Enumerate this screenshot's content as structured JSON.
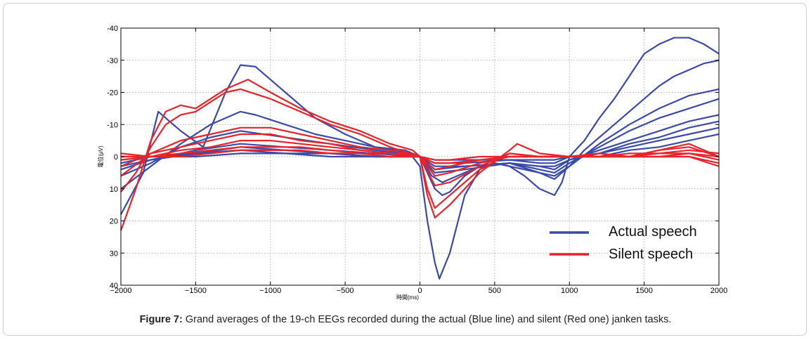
{
  "caption": {
    "label": "Figure 7:",
    "text": "Grand averages of the 19-ch EEGs recorded during the actual (Blue line) and silent (Red one) janken tasks."
  },
  "chart_data": {
    "type": "line",
    "xlim": [
      -2000,
      2000
    ],
    "ylim": [
      -40,
      40
    ],
    "y_inverted": true,
    "grid": true,
    "xticks": [
      -2000,
      -1500,
      -1000,
      -500,
      0,
      500,
      1000,
      1500,
      2000
    ],
    "xtick_labels": [
      "−2000",
      "−1500",
      "−1000",
      "−500",
      "0",
      "500",
      "1000",
      "1500",
      "2000"
    ],
    "yticks": [
      -40,
      -30,
      -20,
      -10,
      0,
      10,
      20,
      30,
      40
    ],
    "ytick_labels": [
      "-40",
      "-30",
      "-20",
      "-10",
      "0",
      "10",
      "20",
      "30",
      "40"
    ],
    "xlabel": "時間(ms)",
    "ylabel": "電位(μV)",
    "legend_position": "bottom-right",
    "colors": {
      "actual": "#3a4aa8",
      "silent": "#e8242a"
    },
    "series": [
      {
        "name": "Actual speech",
        "group": "actual",
        "x": [
          -2000,
          -1850,
          -1750,
          -1600,
          -1450,
          -1300,
          -1200,
          -1100,
          -900,
          -700,
          -500,
          -300,
          -150,
          -50,
          0,
          50,
          100,
          130,
          200,
          300,
          400,
          500,
          600,
          700,
          800,
          900,
          950,
          1000,
          1100,
          1200,
          1300,
          1400,
          1500,
          1600,
          1700,
          1800,
          1900,
          2000
        ],
        "y": [
          18,
          5,
          -14,
          -8,
          -3,
          -20,
          -28.5,
          -28,
          -20,
          -12,
          -7,
          -3,
          -2,
          0,
          3,
          20,
          33,
          38,
          30,
          12,
          4,
          2,
          3,
          6,
          10,
          12,
          8,
          0,
          -5,
          -12,
          -18,
          -25,
          -32,
          -35,
          -37,
          -37,
          -35,
          -32
        ]
      },
      {
        "group": "actual",
        "x": [
          -2000,
          -1800,
          -1600,
          -1400,
          -1200,
          -1100,
          -900,
          -700,
          -500,
          -300,
          -100,
          0,
          50,
          100,
          150,
          200,
          300,
          400,
          500,
          600,
          700,
          800,
          900,
          1000,
          1100,
          1200,
          1300,
          1400,
          1500,
          1600,
          1700,
          1800,
          1900,
          2000
        ],
        "y": [
          10,
          3,
          -4,
          -10,
          -14,
          -13,
          -10,
          -7,
          -5,
          -3,
          -2,
          0,
          5,
          10,
          12,
          11,
          6,
          3,
          2,
          3,
          4,
          5,
          6,
          3,
          -2,
          -6,
          -10,
          -14,
          -18,
          -22,
          -25,
          -27,
          -29,
          -30
        ]
      },
      {
        "group": "actual",
        "x": [
          -2000,
          -1800,
          -1600,
          -1400,
          -1200,
          -900,
          -600,
          -300,
          -100,
          0,
          80,
          150,
          250,
          400,
          600,
          800,
          900,
          1000,
          1200,
          1400,
          1600,
          1800,
          2000
        ],
        "y": [
          6,
          2,
          -3,
          -6,
          -8,
          -6,
          -4,
          -2,
          -1,
          0,
          6,
          8,
          6,
          3,
          2,
          5,
          7,
          3,
          -4,
          -10,
          -15,
          -19,
          -21
        ]
      },
      {
        "group": "actual",
        "x": [
          -2000,
          -1800,
          -1500,
          -1200,
          -900,
          -600,
          -300,
          0,
          100,
          300,
          600,
          800,
          900,
          1000,
          1200,
          1400,
          1600,
          1800,
          2000
        ],
        "y": [
          4,
          1,
          -2,
          -4,
          -3,
          -2,
          -1,
          0,
          5,
          4,
          2,
          4,
          5,
          2,
          -3,
          -8,
          -12,
          -15,
          -18
        ]
      },
      {
        "group": "actual",
        "x": [
          -2000,
          -1800,
          -1500,
          -1200,
          -900,
          -600,
          -300,
          0,
          100,
          300,
          600,
          800,
          900,
          1000,
          1200,
          1400,
          1600,
          1800,
          2000
        ],
        "y": [
          3,
          1,
          -1,
          -3,
          -2,
          -1,
          -1,
          0,
          4,
          3,
          2,
          3,
          4,
          1,
          -2,
          -5,
          -8,
          -11,
          -13
        ]
      },
      {
        "group": "actual",
        "x": [
          -2000,
          -1800,
          -1500,
          -1200,
          -900,
          -600,
          -300,
          0,
          100,
          300,
          600,
          800,
          900,
          1000,
          1200,
          1400,
          1600,
          1800,
          2000
        ],
        "y": [
          2,
          0,
          -1,
          -2,
          -2,
          -1,
          0,
          0,
          3,
          3,
          2,
          3,
          3,
          1,
          -1,
          -4,
          -6,
          -9,
          -11
        ]
      },
      {
        "group": "actual",
        "x": [
          -2000,
          -1800,
          -1500,
          -1200,
          -900,
          -600,
          -300,
          0,
          100,
          300,
          600,
          800,
          900,
          1000,
          1200,
          1400,
          1600,
          1800,
          2000
        ],
        "y": [
          1,
          0,
          -1,
          -2,
          -1,
          -1,
          0,
          0,
          2,
          2,
          1,
          2,
          2,
          0,
          -1,
          -3,
          -5,
          -7,
          -9
        ]
      },
      {
        "group": "actual",
        "x": [
          -2000,
          -1800,
          -1500,
          -1200,
          -900,
          -600,
          -300,
          0,
          100,
          300,
          600,
          800,
          900,
          1000,
          1200,
          1400,
          1600,
          1800,
          2000
        ],
        "y": [
          0,
          0,
          0,
          -1,
          -1,
          0,
          0,
          0,
          1,
          1,
          1,
          1,
          1,
          0,
          0,
          -2,
          -3,
          -5,
          -7
        ]
      },
      {
        "name": "Silent speech",
        "group": "silent",
        "x": [
          -2000,
          -1900,
          -1800,
          -1700,
          -1600,
          -1500,
          -1400,
          -1300,
          -1200,
          -1150,
          -1000,
          -800,
          -600,
          -400,
          -200,
          -50,
          0,
          50,
          100,
          200,
          400,
          600,
          650,
          800,
          1000,
          1200,
          1400,
          1600,
          1800,
          1900,
          2000
        ],
        "y": [
          23,
          10,
          -5,
          -14,
          -16,
          -15,
          -18,
          -21,
          -23,
          -24,
          -20,
          -15,
          -11,
          -8,
          -4,
          -2,
          0,
          12,
          19,
          15,
          5,
          -2,
          -4,
          -1,
          0,
          -1,
          0,
          -2,
          -4,
          -2,
          0
        ]
      },
      {
        "group": "silent",
        "x": [
          -2000,
          -1900,
          -1800,
          -1700,
          -1600,
          -1500,
          -1400,
          -1300,
          -1200,
          -1000,
          -800,
          -600,
          -400,
          -200,
          0,
          50,
          100,
          200,
          400,
          600,
          800,
          1000,
          1200,
          1400,
          1600,
          1800,
          2000
        ],
        "y": [
          11,
          5,
          -3,
          -10,
          -13,
          -14,
          -17,
          -20,
          -21,
          -18,
          -14,
          -10,
          -7,
          -3,
          0,
          10,
          16,
          12,
          4,
          -1,
          0,
          0,
          -1,
          0,
          -2,
          -3,
          0
        ]
      },
      {
        "group": "silent",
        "x": [
          -2000,
          -1800,
          -1600,
          -1400,
          -1200,
          -1000,
          -800,
          -600,
          -400,
          -200,
          0,
          100,
          200,
          400,
          600,
          800,
          1000,
          1200,
          1400,
          1600,
          1800,
          2000
        ],
        "y": [
          6,
          -1,
          -5,
          -7,
          -9,
          -9,
          -7,
          -5,
          -3,
          -2,
          0,
          9,
          8,
          3,
          -1,
          0,
          0,
          0,
          -1,
          -1,
          -2,
          -1
        ]
      },
      {
        "group": "silent",
        "x": [
          -2000,
          -1800,
          -1600,
          -1400,
          -1200,
          -1000,
          -800,
          -600,
          -400,
          -200,
          0,
          100,
          200,
          400,
          600,
          800,
          1000,
          1200,
          1400,
          1600,
          1800,
          2000
        ],
        "y": [
          3,
          -1,
          -3,
          -5,
          -7,
          -7,
          -5,
          -4,
          -2,
          -1,
          0,
          6,
          5,
          2,
          0,
          0,
          0,
          0,
          0,
          -1,
          -1,
          0
        ]
      },
      {
        "group": "silent",
        "x": [
          -2000,
          -1800,
          -1600,
          -1400,
          -1200,
          -1000,
          -800,
          -600,
          -400,
          -200,
          0,
          100,
          200,
          400,
          600,
          800,
          1000,
          1200,
          1400,
          1600,
          1800,
          2000
        ],
        "y": [
          1,
          0,
          -2,
          -3,
          -5,
          -5,
          -4,
          -3,
          -2,
          -1,
          0,
          4,
          3,
          1,
          0,
          0,
          0,
          0,
          0,
          0,
          -1,
          1
        ]
      },
      {
        "group": "silent",
        "x": [
          -2000,
          -1800,
          -1600,
          -1400,
          -1200,
          -1000,
          -800,
          -600,
          -400,
          -200,
          0,
          100,
          200,
          400,
          600,
          800,
          1000,
          1200,
          1400,
          1600,
          1800,
          2000
        ],
        "y": [
          0,
          0,
          -1,
          -2,
          -3,
          -3,
          -3,
          -2,
          -1,
          -1,
          0,
          2,
          2,
          1,
          0,
          0,
          0,
          0,
          0,
          0,
          0,
          2
        ]
      },
      {
        "group": "silent",
        "x": [
          -2000,
          -1800,
          -1600,
          -1400,
          -1200,
          -1000,
          -800,
          -600,
          -400,
          -200,
          0,
          100,
          200,
          400,
          600,
          800,
          1000,
          1200,
          1400,
          1600,
          1800,
          2000
        ],
        "y": [
          -1,
          0,
          0,
          -1,
          -2,
          -2,
          -2,
          -1,
          -1,
          0,
          0,
          1,
          1,
          0,
          0,
          0,
          0,
          0,
          0,
          0,
          0,
          3
        ]
      }
    ]
  }
}
